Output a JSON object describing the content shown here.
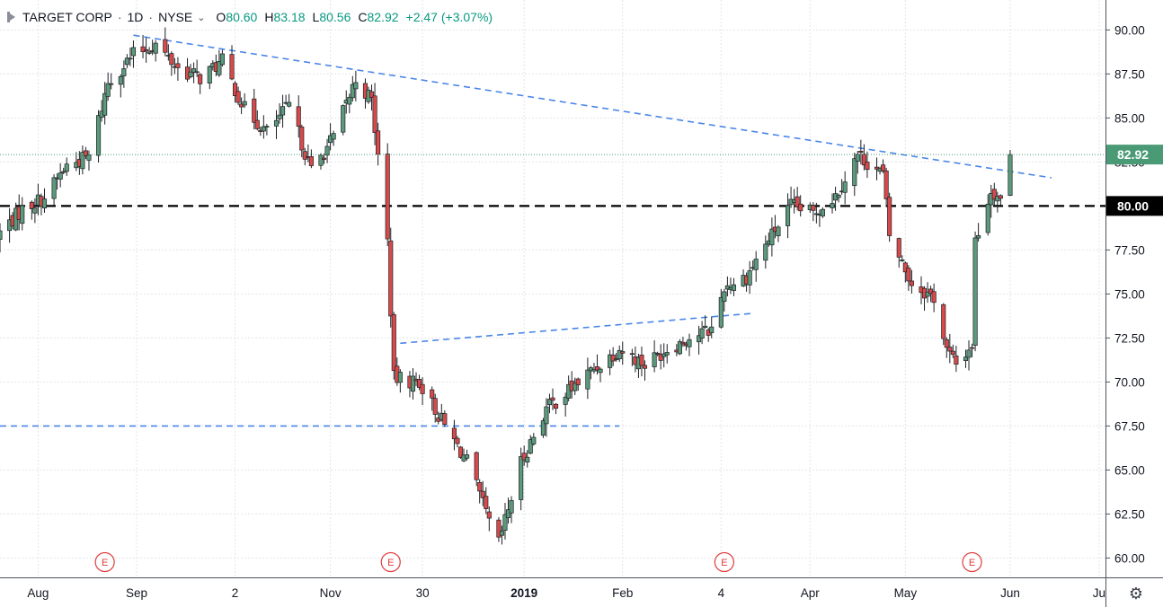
{
  "header": {
    "symbol": "TARGET CORP",
    "interval": "1D",
    "exchange": "NYSE",
    "ohlc": {
      "open_label": "O",
      "open": "80.60",
      "high_label": "H",
      "high": "83.18",
      "low_label": "L",
      "low": "80.56",
      "close_label": "C",
      "close": "82.92",
      "change": "+2.47 (+3.07%)"
    }
  },
  "colors": {
    "up": "#5b9a7b",
    "down": "#d84a4a",
    "trend_line": "#4a86e8",
    "level_line": "#000000",
    "price_badge": "#4a9a76",
    "earnings": "#e03c3c"
  },
  "icons": {
    "settings": "gear-icon",
    "symbol": "flag-icon"
  },
  "chart_data": {
    "type": "candlestick",
    "x_axis": {
      "labels": [
        {
          "text": "Aug",
          "date": "2018-08-01"
        },
        {
          "text": "Sep",
          "date": "2018-09-01"
        },
        {
          "text": "2",
          "date": "2018-10-02"
        },
        {
          "text": "Nov",
          "date": "2018-11-01"
        },
        {
          "text": "30",
          "date": "2018-11-30"
        },
        {
          "text": "2019",
          "date": "2019-01-01"
        },
        {
          "text": "Feb",
          "date": "2019-02-01"
        },
        {
          "text": "4",
          "date": "2019-03-04"
        },
        {
          "text": "Apr",
          "date": "2019-04-01"
        },
        {
          "text": "May",
          "date": "2019-05-01"
        },
        {
          "text": "Jun",
          "date": "2019-06-03"
        },
        {
          "text": "Ju",
          "date": "2019-07-01"
        }
      ],
      "range": [
        "2018-07-20",
        "2019-07-03"
      ]
    },
    "y_axis": {
      "ticks": [
        "90.00",
        "87.50",
        "85.00",
        "82.50",
        "80.00",
        "77.50",
        "75.00",
        "72.50",
        "70.00",
        "67.50",
        "65.00",
        "62.50",
        "60.00"
      ],
      "range": [
        58.9,
        91.7
      ],
      "side": "right"
    },
    "grid": true,
    "last_price": "82.92",
    "level_label": "80.00",
    "horizontal_levels": [
      {
        "value": 80.0,
        "style": "dashed-black"
      },
      {
        "value": 67.5,
        "style": "dashed-blue",
        "from": "2018-07-20",
        "to": "2019-01-31"
      }
    ],
    "trend_lines": [
      {
        "from": [
          "2018-08-31",
          89.7
        ],
        "to": [
          "2019-06-16",
          81.6
        ]
      },
      {
        "from": [
          "2018-11-23",
          72.2
        ],
        "to": [
          "2019-03-14",
          73.9
        ]
      }
    ],
    "earnings_markers": [
      {
        "text": "E",
        "date": "2018-08-22"
      },
      {
        "text": "E",
        "date": "2018-11-20"
      },
      {
        "text": "E",
        "date": "2019-03-05"
      },
      {
        "text": "E",
        "date": "2019-05-22"
      }
    ],
    "anchors": [
      [
        "2018-07-20",
        78.5
      ],
      [
        "2018-07-27",
        79.8
      ],
      [
        "2018-08-03",
        80.5
      ],
      [
        "2018-08-10",
        82.3
      ],
      [
        "2018-08-17",
        82.8
      ],
      [
        "2018-08-23",
        87.0
      ],
      [
        "2018-08-31",
        88.6
      ],
      [
        "2018-09-07",
        89.2
      ],
      [
        "2018-09-14",
        87.8
      ],
      [
        "2018-09-21",
        87.3
      ],
      [
        "2018-09-28",
        88.2
      ],
      [
        "2018-10-05",
        85.5
      ],
      [
        "2018-10-12",
        84.2
      ],
      [
        "2018-10-19",
        85.7
      ],
      [
        "2018-10-26",
        82.0
      ],
      [
        "2018-11-02",
        83.9
      ],
      [
        "2018-11-09",
        87.2
      ],
      [
        "2018-11-14",
        86.0
      ],
      [
        "2018-11-19",
        78.0
      ],
      [
        "2018-11-21",
        70.2
      ],
      [
        "2018-11-29",
        70.0
      ],
      [
        "2018-12-07",
        67.5
      ],
      [
        "2018-12-14",
        65.5
      ],
      [
        "2018-12-21",
        62.0
      ],
      [
        "2018-12-24",
        60.8
      ],
      [
        "2018-12-31",
        65.4
      ],
      [
        "2019-01-08",
        68.5
      ],
      [
        "2019-01-15",
        69.5
      ],
      [
        "2019-01-22",
        70.6
      ],
      [
        "2019-01-31",
        71.9
      ],
      [
        "2019-02-08",
        71.0
      ],
      [
        "2019-02-15",
        71.9
      ],
      [
        "2019-02-22",
        72.5
      ],
      [
        "2019-03-01",
        73.0
      ],
      [
        "2019-03-05",
        75.4
      ],
      [
        "2019-03-12",
        76.0
      ],
      [
        "2019-03-19",
        78.1
      ],
      [
        "2019-03-26",
        80.0
      ],
      [
        "2019-04-02",
        79.6
      ],
      [
        "2019-04-09",
        80.6
      ],
      [
        "2019-04-16",
        82.9
      ],
      [
        "2019-04-19",
        82.5
      ],
      [
        "2019-04-24",
        81.8
      ],
      [
        "2019-04-26",
        78.3
      ],
      [
        "2019-05-03",
        75.6
      ],
      [
        "2019-05-10",
        74.8
      ],
      [
        "2019-05-14",
        71.8
      ],
      [
        "2019-05-17",
        71.0
      ],
      [
        "2019-05-22",
        72.1
      ],
      [
        "2019-05-23",
        78.0
      ],
      [
        "2019-05-28",
        80.9
      ],
      [
        "2019-05-31",
        80.5
      ],
      [
        "2019-06-03",
        82.92
      ]
    ]
  }
}
